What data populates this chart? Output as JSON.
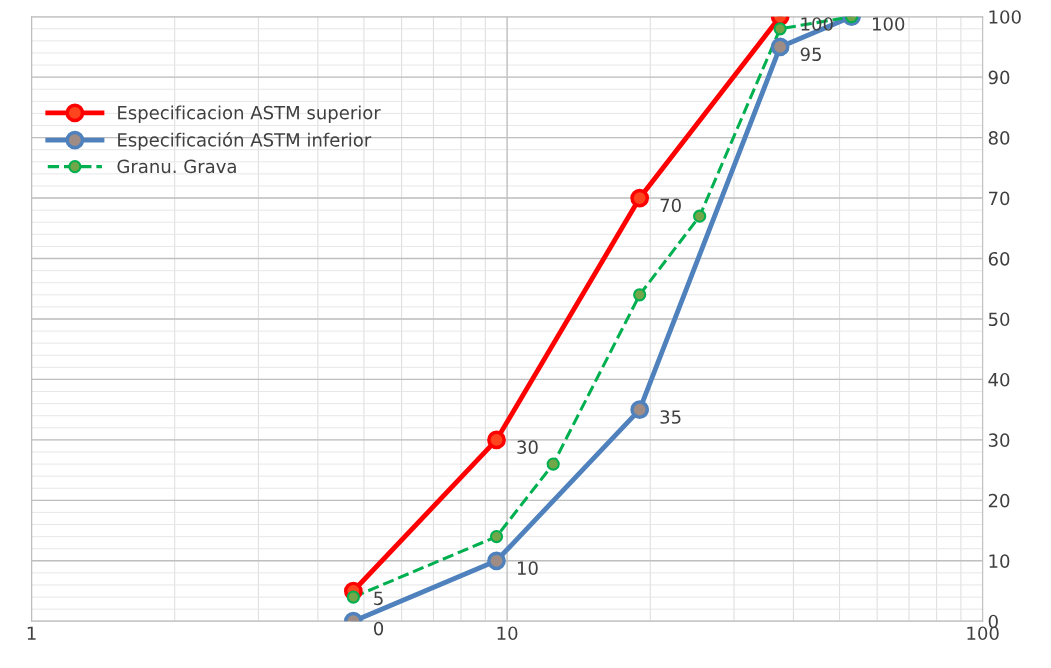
{
  "chart_data": {
    "type": "line",
    "log": "x",
    "xlim": [
      1,
      100
    ],
    "xticks": [
      1,
      10,
      100
    ],
    "ylim": [
      0,
      100
    ],
    "yticks": [
      0,
      10,
      20,
      30,
      40,
      50,
      60,
      70,
      80,
      90,
      100
    ],
    "grid": true,
    "legend": "top left",
    "marker": "circle",
    "series": [
      {
        "name": "Especificacion ASTM superior",
        "color": "#ff0000",
        "x": [
          4.75,
          9.5,
          19,
          37.5
        ],
        "values": [
          5,
          30,
          70,
          100
        ],
        "value_labels": [
          "5",
          "30",
          "70",
          "100"
        ]
      },
      {
        "name": "Especificación ASTM inferior",
        "color": "#4f81bd",
        "x": [
          4.75,
          9.5,
          19,
          37.5,
          53
        ],
        "values": [
          0,
          10,
          35,
          95,
          100
        ],
        "value_labels": [
          "0",
          "10",
          "35",
          "95",
          "100"
        ]
      },
      {
        "name": "Granu. Grava",
        "color": "#00b050",
        "line_style": "dashed",
        "x": [
          4.75,
          9.5,
          12.5,
          19,
          25.4,
          37.5,
          53
        ],
        "values": [
          4,
          14,
          26,
          54,
          67,
          98,
          100
        ]
      }
    ]
  }
}
